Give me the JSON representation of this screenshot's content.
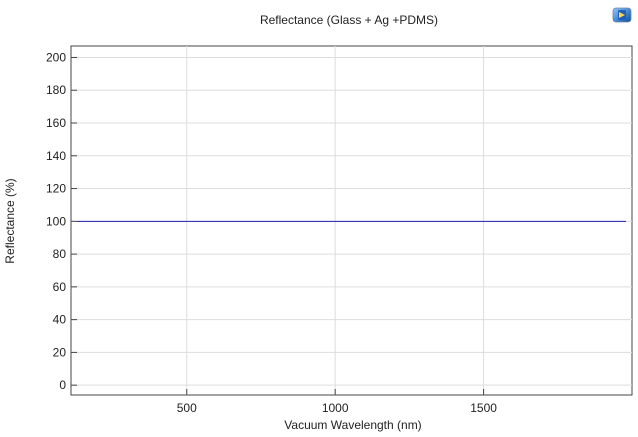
{
  "app": {
    "logo_icon": "comsol-logo-icon"
  },
  "chart_data": {
    "type": "line",
    "title": "Reflectance (Glass + Ag +PDMS)",
    "xlabel": "Vacuum Wavelength (nm)",
    "ylabel": "Reflectance (%)",
    "xlim": [
      110,
      2000
    ],
    "ylim": [
      -6,
      207
    ],
    "xticks": [
      500,
      1000,
      1500
    ],
    "yticks": [
      0,
      20,
      40,
      60,
      80,
      100,
      120,
      140,
      160,
      180,
      200
    ],
    "grid": true,
    "series": [
      {
        "color": "#1f1fb4",
        "x": [
          130,
          1980
        ],
        "y": [
          100,
          100
        ]
      }
    ]
  }
}
